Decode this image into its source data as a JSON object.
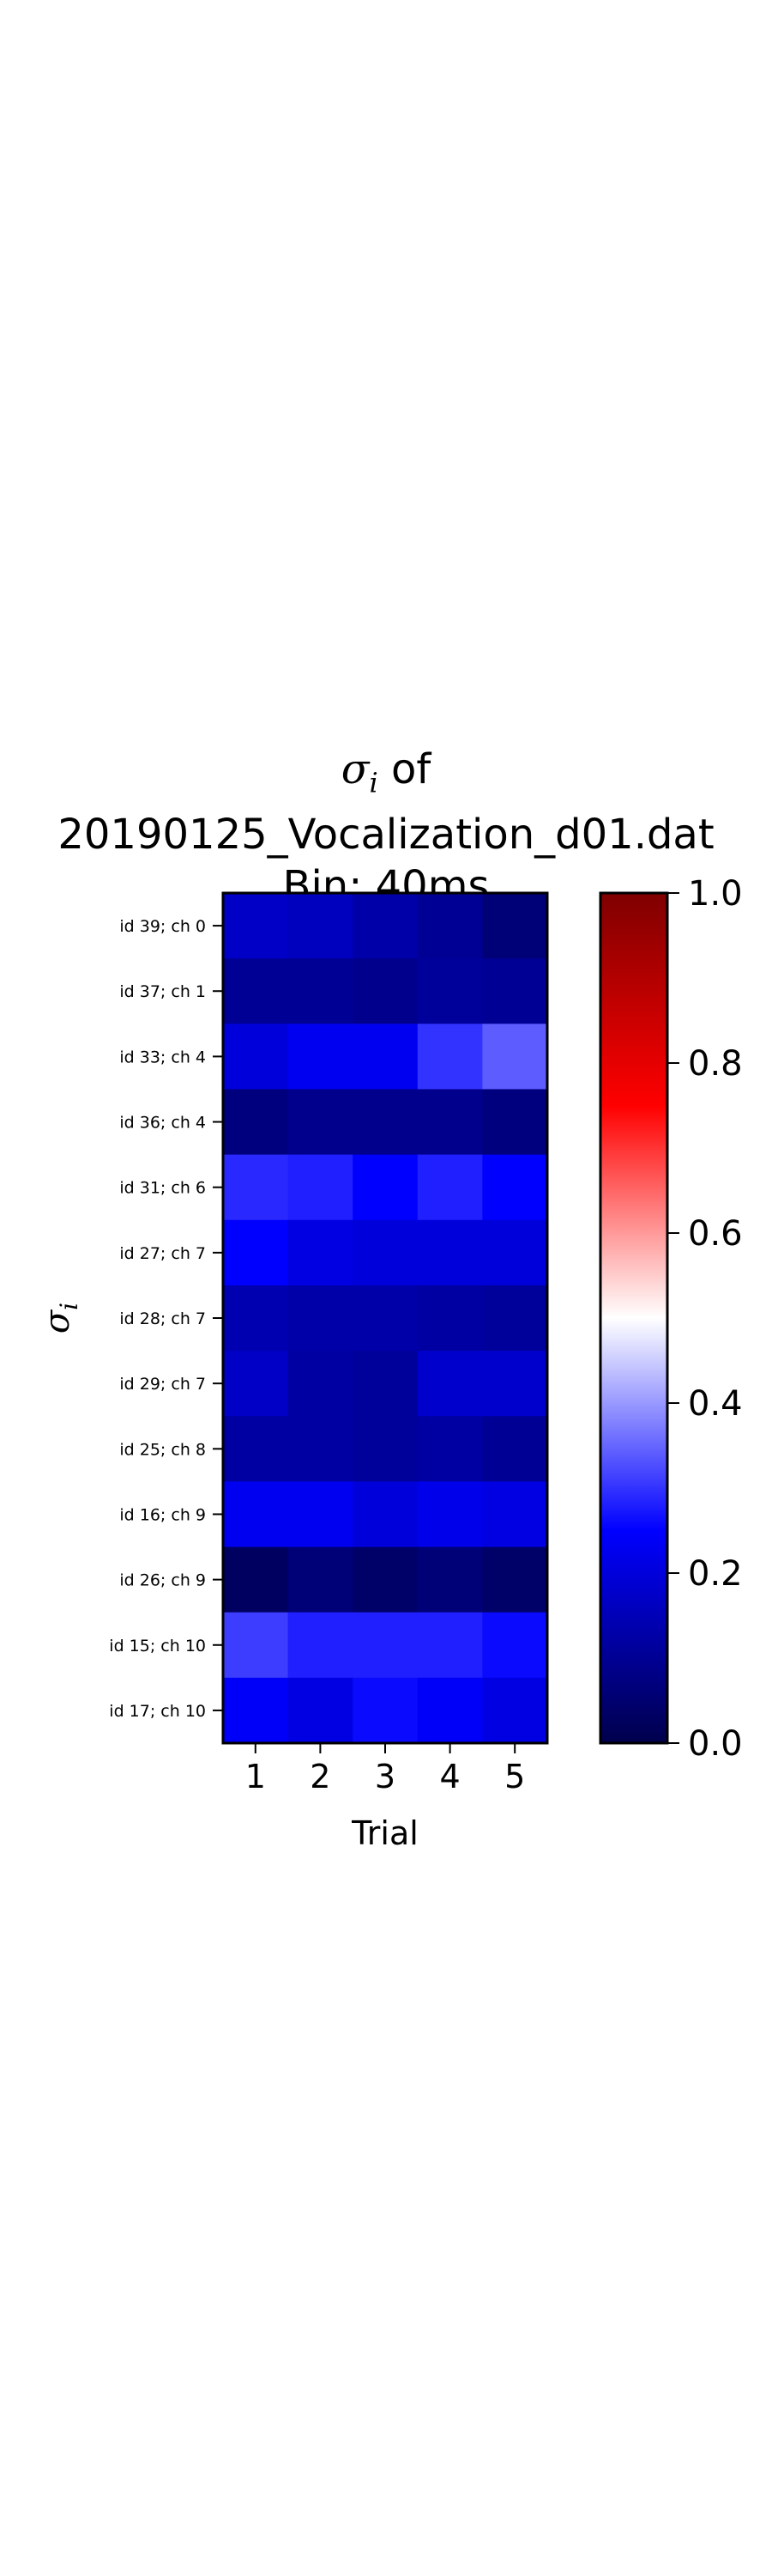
{
  "chart_data": {
    "type": "heatmap",
    "title": {
      "symbol": "σ",
      "subscript": "i",
      "line1_suffix": " of",
      "line2": "20190125_Vocalization_d01.dat",
      "line3": "Bin: 40ms"
    },
    "xlabel": "Trial",
    "ylabel": {
      "symbol": "σ",
      "subscript": "i"
    },
    "x_categories": [
      "1",
      "2",
      "3",
      "4",
      "5"
    ],
    "y_categories": [
      "id 39; ch 0",
      "id 37; ch 1",
      "id 33; ch 4",
      "id 36; ch 4",
      "id 31; ch 6",
      "id 27; ch 7",
      "id 28; ch 7",
      "id 29; ch 7",
      "id 25; ch 8",
      "id 16; ch 9",
      "id 26; ch 9",
      "id 15; ch 10",
      "id 17; ch 10"
    ],
    "values": [
      [
        0.17,
        0.16,
        0.13,
        0.1,
        0.06
      ],
      [
        0.1,
        0.1,
        0.09,
        0.11,
        0.1
      ],
      [
        0.2,
        0.23,
        0.23,
        0.3,
        0.34
      ],
      [
        0.07,
        0.09,
        0.09,
        0.09,
        0.07
      ],
      [
        0.29,
        0.28,
        0.25,
        0.28,
        0.25
      ],
      [
        0.25,
        0.21,
        0.2,
        0.2,
        0.2
      ],
      [
        0.14,
        0.13,
        0.13,
        0.12,
        0.11
      ],
      [
        0.17,
        0.12,
        0.11,
        0.18,
        0.18
      ],
      [
        0.12,
        0.12,
        0.11,
        0.12,
        0.1
      ],
      [
        0.23,
        0.23,
        0.2,
        0.22,
        0.21
      ],
      [
        0.03,
        0.06,
        0.04,
        0.06,
        0.04
      ],
      [
        0.31,
        0.28,
        0.28,
        0.28,
        0.26
      ],
      [
        0.24,
        0.21,
        0.26,
        0.24,
        0.21
      ]
    ],
    "colormap": "seismic",
    "vmin": 0.0,
    "vmax": 1.0,
    "colorbar_ticks": [
      "0.0",
      "0.2",
      "0.4",
      "0.6",
      "0.8",
      "1.0"
    ],
    "colors": {
      "cmap_stops": [
        "#00004c",
        "#0000ff",
        "#ffffff",
        "#ff0000",
        "#7f0000"
      ]
    }
  }
}
